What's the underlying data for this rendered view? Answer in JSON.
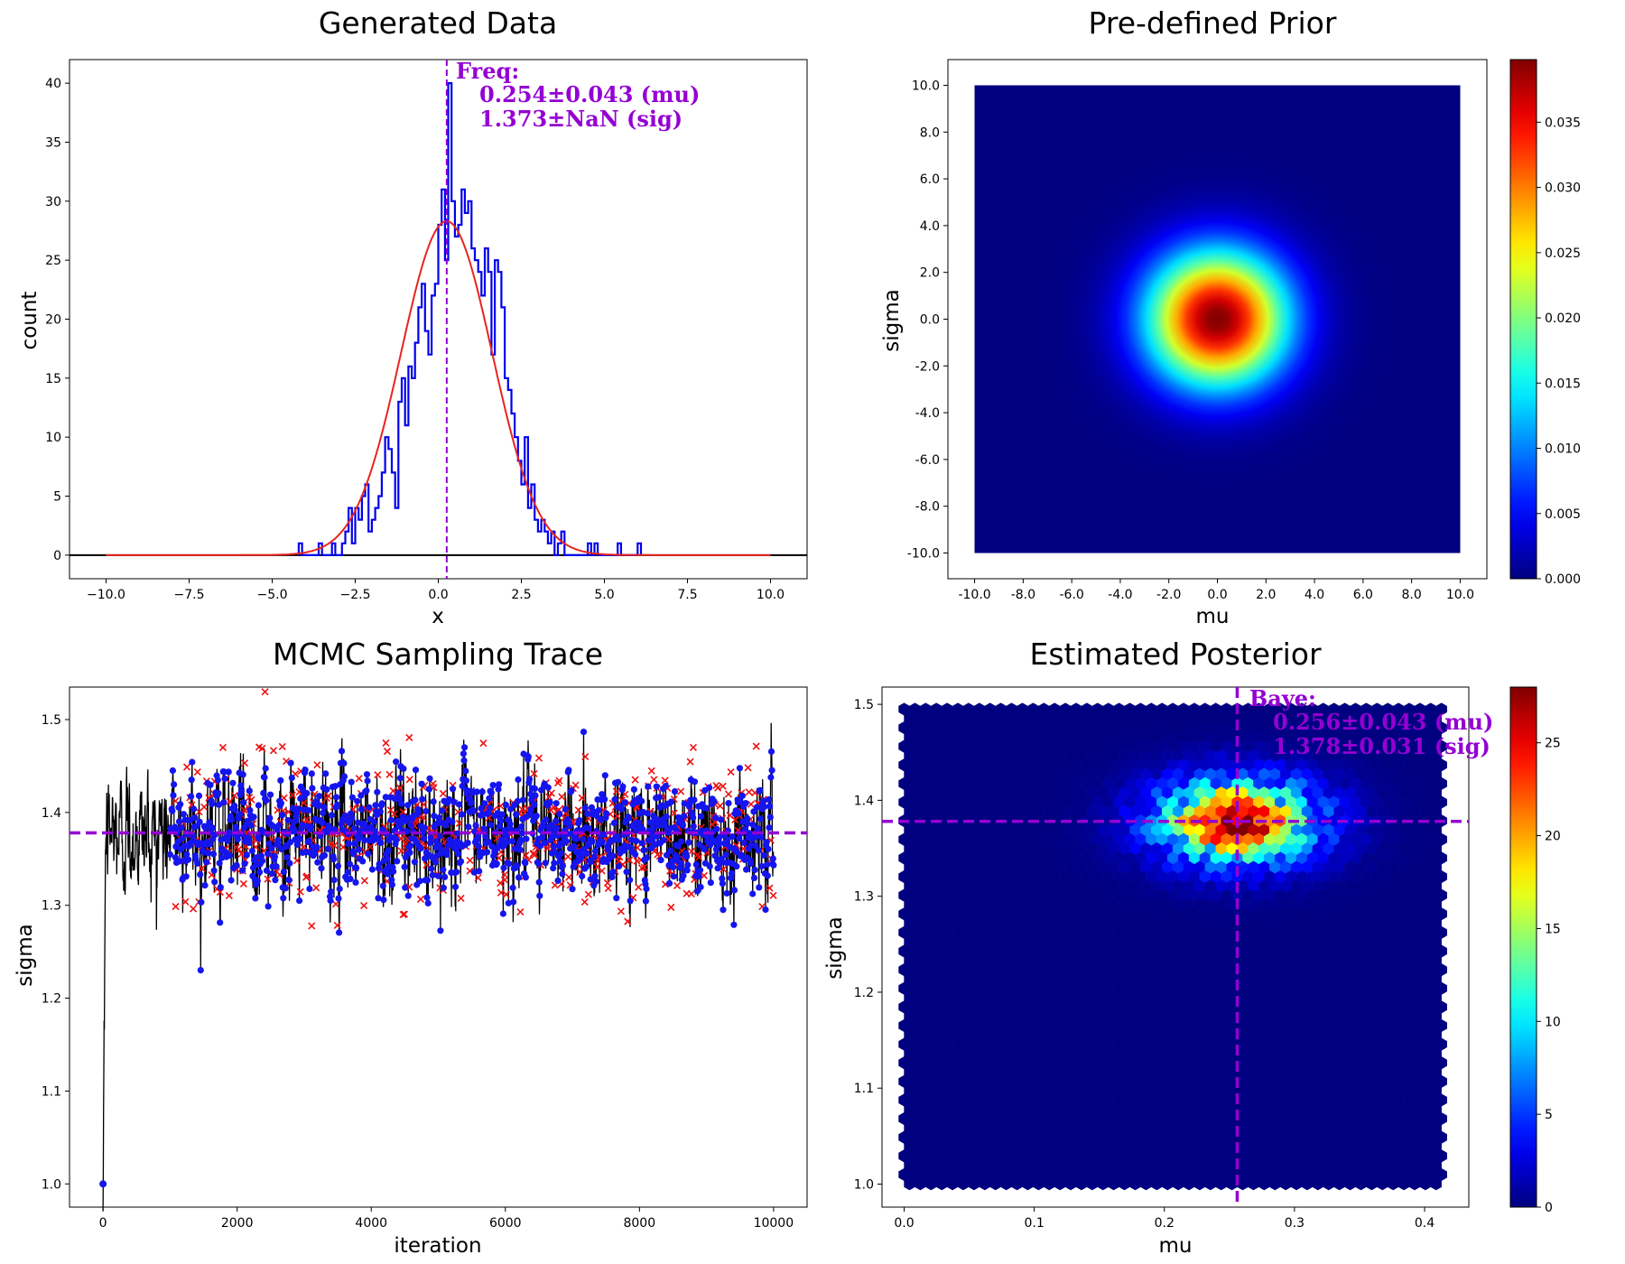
{
  "chart_data": [
    {
      "type": "step-histogram",
      "title": "Generated Data",
      "xlabel": "x",
      "ylabel": "count",
      "xlim": [
        -11.1,
        11.1
      ],
      "ylim": [
        -2,
        42
      ],
      "xticks": [
        -10,
        -7.5,
        -5,
        -2.5,
        0,
        2.5,
        5,
        7.5,
        10
      ],
      "xtick_labels": [
        "−10.0",
        "−7.5",
        "−5.0",
        "−2.5",
        "0.0",
        "2.5",
        "5.0",
        "7.5",
        "10.0"
      ],
      "yticks": [
        0,
        5,
        10,
        15,
        20,
        25,
        30,
        35,
        40
      ],
      "ytick_labels": [
        "0",
        "5",
        "10",
        "15",
        "20",
        "25",
        "30",
        "35",
        "40"
      ],
      "hist_edges_start": -4.2,
      "hist_bin_width": 0.1,
      "hist_counts": [
        1,
        0,
        0,
        0,
        0,
        0,
        1,
        0,
        0,
        0,
        1,
        0,
        0,
        1,
        2,
        4,
        1,
        4,
        3,
        5,
        6,
        2,
        3,
        4,
        5,
        7,
        10,
        9,
        7,
        4,
        13,
        15,
        11,
        16,
        15,
        18,
        21,
        23,
        19,
        17,
        22,
        23,
        28,
        31,
        25,
        40,
        30,
        27,
        28,
        31,
        29,
        30,
        26,
        25,
        24,
        22,
        26,
        24,
        17,
        25,
        24,
        21,
        15,
        14,
        12,
        10,
        8,
        6,
        10,
        4,
        6,
        3,
        2,
        3,
        2,
        1,
        2,
        0,
        1,
        2,
        0,
        0,
        0,
        0,
        0,
        0,
        0,
        1,
        0,
        1,
        0,
        0,
        0,
        0,
        0,
        0,
        1,
        0,
        0,
        0,
        0,
        0,
        1
      ],
      "fit_curve": {
        "name": "fit",
        "mu": 0.25,
        "sigma": 1.37,
        "peak": 28.3,
        "x_range": [
          -10,
          10
        ],
        "color": "#e8241f"
      },
      "baseline_x_range": [
        -11.1,
        11.1
      ],
      "freq_mu_line": 0.254,
      "annotation": {
        "line1": "Freq:",
        "line2": "0.254±0.043 (mu)",
        "line3": "1.373±NaN (sig)"
      },
      "colors": {
        "hist": "#0000ee",
        "fit": "#e8241f",
        "marker": "#9400D3"
      }
    },
    {
      "type": "heatmap",
      "title": "Pre-defined Prior",
      "xlabel": "mu",
      "ylabel": "sigma",
      "xlim": [
        -11.1,
        11.1
      ],
      "ylim": [
        -11.1,
        11.1
      ],
      "extent": [
        -10,
        10
      ],
      "distribution": {
        "kind": "gaussian-2d",
        "mean": [
          0,
          0
        ],
        "sigma": 2,
        "vmax": 0.0398
      },
      "ticks": [
        -10,
        -8,
        -6,
        -4,
        -2,
        0,
        2,
        4,
        6,
        8,
        10
      ],
      "tick_labels": [
        "-10.0",
        "-8.0",
        "-6.0",
        "-4.0",
        "-2.0",
        "0.0",
        "2.0",
        "4.0",
        "6.0",
        "8.0",
        "10.0"
      ],
      "colorbar": {
        "min": 0,
        "max": 0.0398,
        "ticks": [
          0,
          0.005,
          0.01,
          0.015,
          0.02,
          0.025,
          0.03,
          0.035
        ],
        "tick_labels": [
          "0.000",
          "0.005",
          "0.010",
          "0.015",
          "0.020",
          "0.025",
          "0.030",
          "0.035"
        ],
        "colormap": "jet"
      }
    },
    {
      "type": "line+scatter",
      "title": "MCMC Sampling Trace",
      "xlabel": "iteration",
      "ylabel": "sigma",
      "xlim": [
        -500,
        10500
      ],
      "ylim": [
        0.975,
        1.535
      ],
      "xticks": [
        0,
        2000,
        4000,
        6000,
        8000,
        10000
      ],
      "xtick_labels": [
        "0",
        "2000",
        "4000",
        "6000",
        "8000",
        "10000"
      ],
      "yticks": [
        1.0,
        1.1,
        1.2,
        1.3,
        1.4,
        1.5
      ],
      "ytick_labels": [
        "1.0",
        "1.1",
        "1.2",
        "1.3",
        "1.4",
        "1.5"
      ],
      "start_value": 1.0,
      "burn_in": 1000,
      "iterations": 10000,
      "mean_sigma": 1.378,
      "spread_sigma": 0.031,
      "estimate_line": 1.378,
      "series": [],
      "colors": {
        "trace": "#000000",
        "accepted": "#1515ee",
        "rejected": "#ee1111",
        "estimate": "#9400D3"
      }
    },
    {
      "type": "hexbin",
      "title": "Estimated Posterior",
      "xlabel": "mu",
      "ylabel": "sigma",
      "xlim": [
        -0.017,
        0.434
      ],
      "ylim": [
        0.976,
        1.518
      ],
      "xticks": [
        0.0,
        0.1,
        0.2,
        0.3,
        0.4
      ],
      "xtick_labels": [
        "0.0",
        "0.1",
        "0.2",
        "0.3",
        "0.4"
      ],
      "yticks": [
        1.0,
        1.1,
        1.2,
        1.3,
        1.4,
        1.5
      ],
      "ytick_labels": [
        "1.0",
        "1.1",
        "1.2",
        "1.3",
        "1.4",
        "1.5"
      ],
      "grid_extent": {
        "mu": [
          0.0,
          0.413
        ],
        "sigma": [
          1.0,
          1.495
        ]
      },
      "gridsize": 50,
      "density": {
        "mean_mu": 0.256,
        "sd_mu": 0.043,
        "mean_sigma": 1.378,
        "sd_sigma": 0.031,
        "peak_count": 28
      },
      "bayes_mu_line": 0.256,
      "bayes_sigma_line": 1.378,
      "annotation": {
        "line1": "Baye:",
        "line2": "0.256±0.043 (mu)",
        "line3": "1.378±0.031 (sig)"
      },
      "colorbar": {
        "min": 0,
        "max": 28,
        "ticks": [
          0,
          5,
          10,
          15,
          20,
          25
        ],
        "tick_labels": [
          "0",
          "5",
          "10",
          "15",
          "20",
          "25"
        ],
        "colormap": "jet"
      }
    }
  ]
}
